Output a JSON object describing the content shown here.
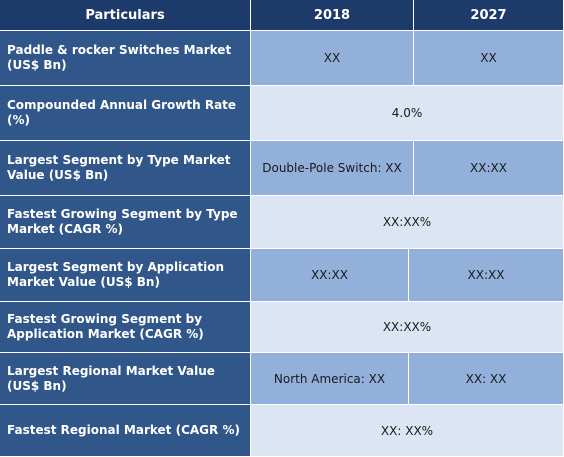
{
  "header": {
    "particulars": "Particulars",
    "year_1": "2018",
    "year_2": "2027"
  },
  "rows": [
    {
      "label": "Paddle & rocker Switches Market (US$ Bn)",
      "v2018": "XX",
      "v2027": "XX"
    },
    {
      "label": "Compounded Annual Growth Rate (%)",
      "merged": "4.0%"
    },
    {
      "label": "Largest Segment by Type Market Value (US$ Bn)",
      "v2018": "Double-Pole Switch: XX",
      "v2027": "XX:XX"
    },
    {
      "label": "Fastest Growing Segment by Type Market (CAGR %)",
      "merged": "XX:XX%"
    },
    {
      "label": "Largest Segment by Application Market Value (US$ Bn)",
      "v2018": "XX:XX",
      "v2027": "XX:XX"
    },
    {
      "label": "Fastest Growing Segment by Application Market (CAGR %)",
      "merged": "XX:XX%"
    },
    {
      "label": "Largest Regional Market Value (US$ Bn)",
      "v2018": "North America: XX",
      "v2027": "XX: XX"
    },
    {
      "label": "Fastest Regional Market (CAGR %)",
      "merged": "XX: XX%"
    }
  ],
  "colors": {
    "header_bg": "#1d3b6a",
    "label_bg": "#31568a",
    "value_bg_blue": "#92b0da",
    "value_bg_light": "#dbe5f3"
  }
}
